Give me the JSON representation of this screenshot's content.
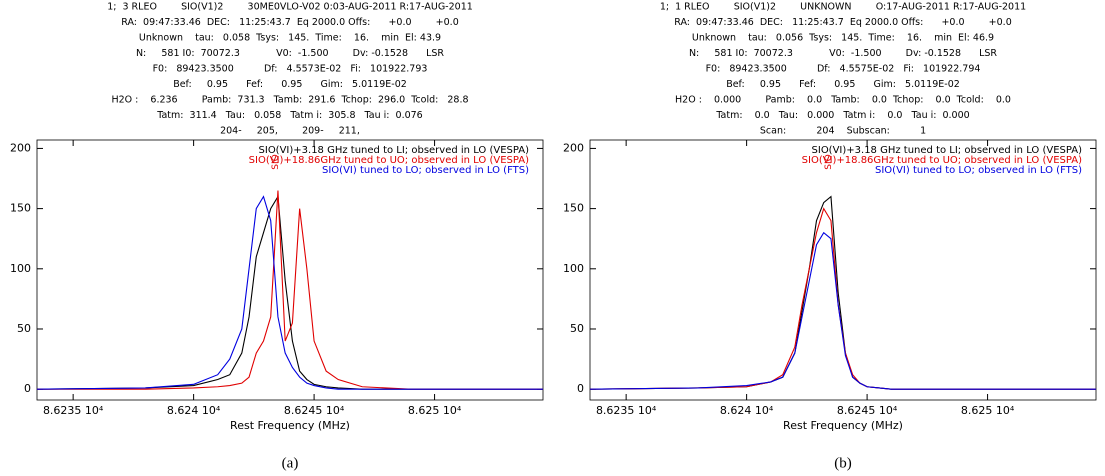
{
  "chart_data": [
    {
      "type": "line",
      "header_lines": [
        "1;  3 RLEO        SIO(V1)2        30ME0VLO-V02 0:03-AUG-2011 R:17-AUG-2011",
        "RA:  09:47:33.46  DEC:   11:25:43.7  Eq 2000.0 Offs:      +0.0        +0.0",
        "Unknown    tau:   0.058  Tsys:   145.  Time:    16.    min  El: 43.9",
        "N:     581 I0:  70072.3            V0:  -1.500        Dv: -0.1528      LSR",
        "F0:   89423.3500          Df:   4.5573E-02   Fi:   101922.793",
        "Bef:     0.95      Fef:      0.95      Gim:   5.0119E-02",
        "H2O :    6.236        Pamb:  731.3   Tamb:  291.6  Tchop:  296.0  Tcold:   28.8",
        "Tatm:  311.4   Tau:   0.058   Tatm i:  305.8   Tau i:  0.076",
        "204-     205,        209-     211,"
      ],
      "line_marker": {
        "label": "SIO",
        "x": 86243.4
      },
      "xlabel": "Rest Frequency (MHz)",
      "caption": "(a)",
      "x": [
        86233.5,
        86238,
        86240,
        86241,
        86241.5,
        86242,
        86242.3,
        86242.6,
        86242.9,
        86243.2,
        86243.5,
        86243.8,
        86244.1,
        86244.4,
        86244.7,
        86245,
        86245.5,
        86246,
        86247,
        86249,
        86254.5
      ],
      "series": [
        {
          "name": "SIO(VI)+3.18 GHz tuned to LI; observed in LO (VESPA)",
          "color": "#000000",
          "values": [
            0,
            1,
            3,
            8,
            12,
            30,
            60,
            110,
            130,
            150,
            160,
            90,
            40,
            15,
            8,
            4,
            2,
            1,
            0,
            0,
            0
          ]
        },
        {
          "name": "SIO(VI)+18.86GHz tuned to UO; observed in LO (VESPA)",
          "color": "#e00000",
          "values": [
            0,
            0,
            1,
            2,
            3,
            5,
            10,
            30,
            40,
            60,
            165,
            40,
            55,
            150,
            100,
            40,
            15,
            8,
            2,
            0,
            0
          ]
        },
        {
          "name": "SIO(VI) tuned to LO; observed in LO (FTS)",
          "color": "#0000e0",
          "values": [
            0,
            1,
            4,
            12,
            25,
            50,
            100,
            150,
            160,
            140,
            60,
            30,
            18,
            10,
            5,
            3,
            1,
            0,
            0,
            0,
            0
          ]
        }
      ],
      "xlim": [
        86233.5,
        86254.5
      ],
      "xticks": [
        {
          "value": 86235,
          "label": "8.6235 10⁴"
        },
        {
          "value": 86240,
          "label": "8.624 10⁴"
        },
        {
          "value": 86245,
          "label": "8.6245 10⁴"
        },
        {
          "value": 86250,
          "label": "8.625 10⁴"
        }
      ],
      "ylim": [
        -9,
        207
      ],
      "yticks": [
        0,
        50,
        100,
        150,
        200
      ]
    },
    {
      "type": "line",
      "header_lines": [
        "1;  1 RLEO        SIO(V1)2        UNKNOWN        O:17-AUG-2011 R:17-AUG-2011",
        "RA:  09:47:33.46  DEC:   11:25:43.7  Eq 2000.0 Offs:      +0.0        +0.0",
        "Unknown    tau:   0.056  Tsys:   145.  Time:    16.    min  El: 46.9",
        "N:     581 I0:  70072.3            V0:  -1.500        Dv: -0.1528      LSR",
        "F0:   89423.3500          Df:   4.5575E-02   Fi:   101922.794",
        "Bef:     0.95      Fef:      0.95      Gim:   5.0119E-02",
        "H2O :    0.000        Pamb:    0.0   Tamb:    0.0  Tchop:    0.0  Tcold:    0.0",
        "Tatm:    0.0   Tau:   0.000   Tatm i:    0.0   Tau i:  0.000",
        "Scan:          204    Subscan:          1"
      ],
      "line_marker": {
        "label": "SIO",
        "x": 86243.4
      },
      "xlabel": "Rest Frequency (MHz)",
      "caption": "(b)",
      "x": [
        86233.5,
        86238,
        86240,
        86241,
        86241.5,
        86242,
        86242.3,
        86242.6,
        86242.9,
        86243.2,
        86243.5,
        86243.8,
        86244.1,
        86244.4,
        86244.7,
        86245,
        86245.5,
        86246,
        86247,
        86249,
        86254.5
      ],
      "series": [
        {
          "name": "SIO(VI)+3.18 GHz tuned to LI; observed in LO (VESPA)",
          "color": "#000000",
          "values": [
            0,
            1,
            2,
            6,
            10,
            30,
            65,
            100,
            140,
            155,
            160,
            80,
            30,
            10,
            5,
            2,
            1,
            0,
            0,
            0,
            0
          ]
        },
        {
          "name": "SIO(VI)+18.86GHz tuned to UO; observed in LO (VESPA)",
          "color": "#e00000",
          "values": [
            0,
            1,
            2,
            6,
            12,
            35,
            70,
            100,
            130,
            150,
            140,
            70,
            30,
            12,
            5,
            2,
            1,
            0,
            0,
            0,
            0
          ]
        },
        {
          "name": "SIO(VI) tuned to LO; observed in LO (FTS)",
          "color": "#0000e0",
          "values": [
            0,
            1,
            3,
            6,
            10,
            30,
            60,
            90,
            120,
            130,
            125,
            70,
            28,
            10,
            5,
            2,
            1,
            0,
            0,
            0,
            0
          ]
        }
      ],
      "xlim": [
        86233.5,
        86254.5
      ],
      "xticks": [
        {
          "value": 86235,
          "label": "8.6235 10⁴"
        },
        {
          "value": 86240,
          "label": "8.624 10⁴"
        },
        {
          "value": 86245,
          "label": "8.6245 10⁴"
        },
        {
          "value": 86250,
          "label": "8.625 10⁴"
        }
      ],
      "ylim": [
        -9,
        207
      ],
      "yticks": [
        0,
        50,
        100,
        150,
        200
      ]
    }
  ]
}
